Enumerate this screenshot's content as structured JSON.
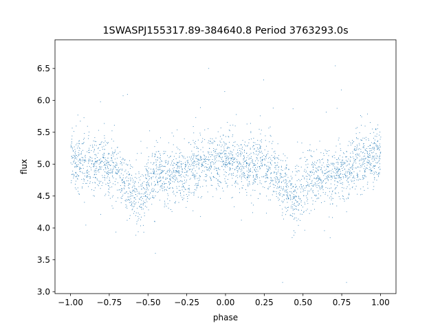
{
  "chart_data": {
    "type": "scatter",
    "title": "1SWASPJ155317.89-384640.8 Period 3763293.0s",
    "xlabel": "phase",
    "ylabel": "flux",
    "xlim": [
      -1.1,
      1.1
    ],
    "ylim": [
      2.97,
      6.95
    ],
    "xticks": [
      -1.0,
      -0.75,
      -0.5,
      -0.25,
      0.0,
      0.25,
      0.5,
      0.75,
      1.0
    ],
    "xtick_labels": [
      "−1.00",
      "−0.75",
      "−0.50",
      "−0.25",
      "0.00",
      "0.25",
      "0.50",
      "0.75",
      "1.00"
    ],
    "yticks": [
      3.0,
      3.5,
      4.0,
      4.5,
      5.0,
      5.5,
      6.0,
      6.5
    ],
    "ytick_labels": [
      "3.0",
      "3.5",
      "4.0",
      "4.5",
      "5.0",
      "5.5",
      "6.0",
      "6.5"
    ],
    "grid": false,
    "marker_color": "#1f77b4",
    "profile": {
      "phase": [
        -1.0,
        -0.9,
        -0.8,
        -0.7,
        -0.6,
        -0.55,
        -0.5,
        -0.45,
        -0.4,
        -0.3,
        -0.25,
        -0.2,
        -0.1,
        -0.05,
        0.0,
        0.05,
        0.1,
        0.2,
        0.3,
        0.4,
        0.45,
        0.5,
        0.55,
        0.6,
        0.7,
        0.75,
        0.8,
        0.9,
        0.95,
        1.0
      ],
      "median_flux": [
        5.15,
        4.95,
        5.0,
        4.9,
        4.55,
        4.45,
        4.7,
        4.85,
        4.8,
        4.85,
        4.85,
        5.0,
        5.0,
        5.05,
        5.15,
        5.0,
        4.95,
        5.0,
        4.95,
        4.55,
        4.45,
        4.7,
        4.85,
        4.8,
        4.85,
        4.85,
        5.0,
        5.05,
        5.1,
        5.15
      ]
    }
  }
}
